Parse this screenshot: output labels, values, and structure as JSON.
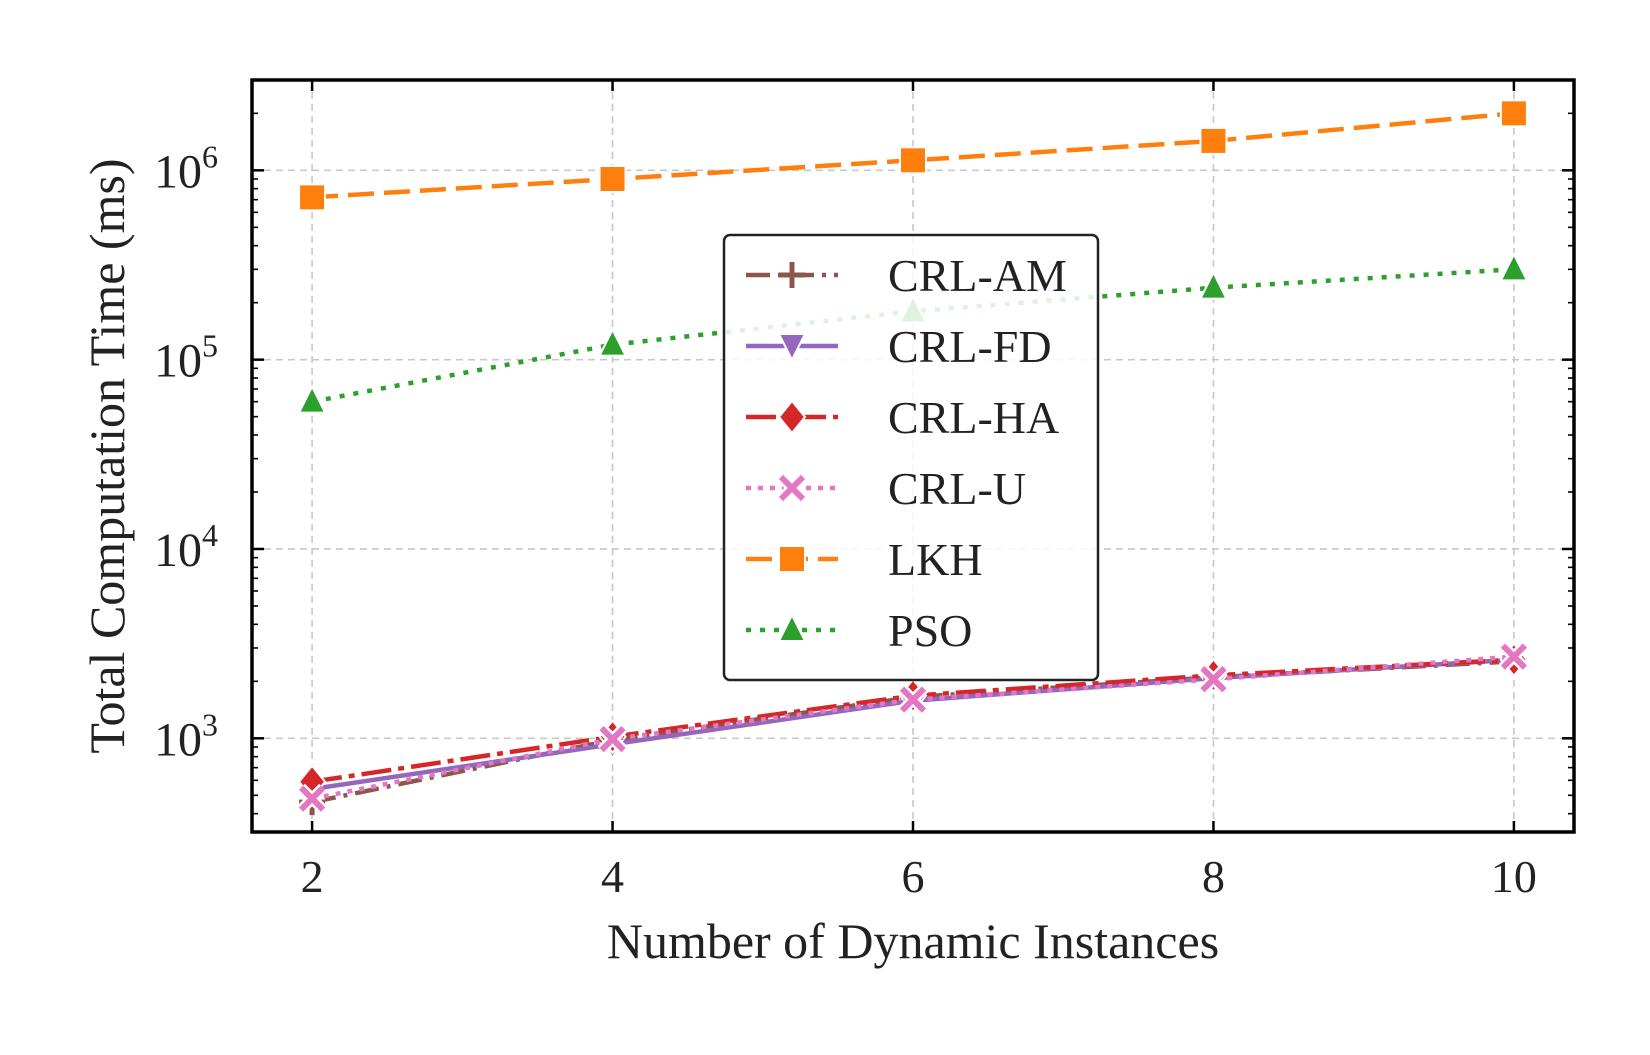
{
  "chart_data": {
    "type": "line",
    "xlabel": "Number of Dynamic Instances",
    "ylabel": "Total Computation Time (ms)",
    "yscale": "log",
    "x": [
      2,
      4,
      6,
      8,
      10
    ],
    "xticks": [
      "2",
      "4",
      "6",
      "8",
      "10"
    ],
    "xlim": [
      1.6,
      10.4
    ],
    "ylim": [
      320,
      3000000
    ],
    "yticks": [
      {
        "value": 1000,
        "base": "10",
        "exp": "3"
      },
      {
        "value": 10000,
        "base": "10",
        "exp": "4"
      },
      {
        "value": 100000,
        "base": "10",
        "exp": "5"
      },
      {
        "value": 1000000,
        "base": "10",
        "exp": "6"
      }
    ],
    "grid": true,
    "legend_position": "center",
    "series": [
      {
        "name": "CRL-AM",
        "color": "#8c564b",
        "marker": "plus",
        "dash": "24 8 4 8",
        "values": [
          460,
          980,
          1650,
          2100,
          2550
        ]
      },
      {
        "name": "CRL-FD",
        "color": "#9467bd",
        "marker": "triangle-down",
        "dash": "",
        "values": [
          540,
          930,
          1580,
          2080,
          2600
        ]
      },
      {
        "name": "CRL-HA",
        "color": "#d62728",
        "marker": "diamond",
        "dash": "30 7 6 7",
        "values": [
          590,
          1020,
          1680,
          2150,
          2600
        ]
      },
      {
        "name": "CRL-U",
        "color": "#e377c2",
        "marker": "x",
        "dash": "5 7",
        "values": [
          480,
          990,
          1600,
          2050,
          2700
        ]
      },
      {
        "name": "LKH",
        "color": "#ff7f0e",
        "marker": "square",
        "dash": "26 10",
        "values": [
          720000,
          900000,
          1130000,
          1430000,
          2000000
        ]
      },
      {
        "name": "PSO",
        "color": "#2ca02c",
        "marker": "triangle-up",
        "dash": "5 9",
        "values": [
          60000,
          120000,
          180000,
          240000,
          300000
        ]
      }
    ]
  }
}
